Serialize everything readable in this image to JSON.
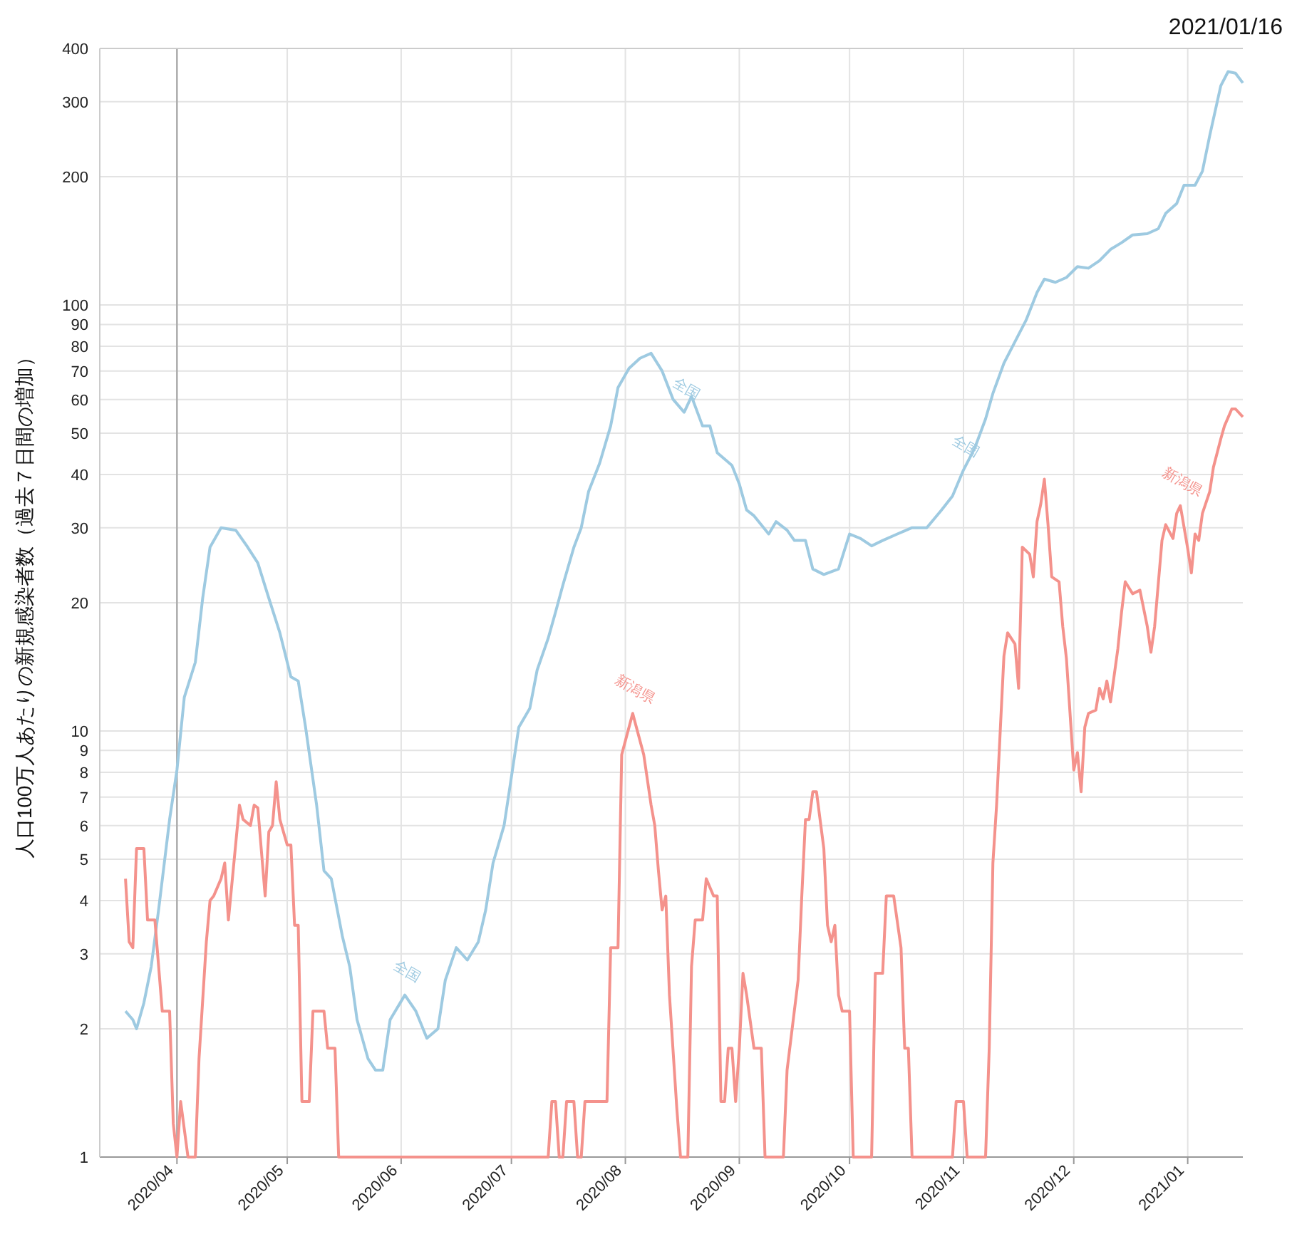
{
  "chart_data": {
    "type": "line",
    "ylabel": "人口100万人あたりの新規感染者数（過去７日間の増加）",
    "log": "y",
    "grid": true,
    "marker": "none",
    "line_style": "solid",
    "xlim": [
      "2020-03-11",
      "2021-01-16"
    ],
    "xticks": [
      {
        "value": "2020-04-01",
        "label": "2020/04"
      },
      {
        "value": "2020-05-01",
        "label": "2020/05"
      },
      {
        "value": "2020-06-01",
        "label": "2020/06"
      },
      {
        "value": "2020-07-01",
        "label": "2020/07"
      },
      {
        "value": "2020-08-01",
        "label": "2020/08"
      },
      {
        "value": "2020-09-01",
        "label": "2020/09"
      },
      {
        "value": "2020-10-01",
        "label": "2020/10"
      },
      {
        "value": "2020-11-01",
        "label": "2020/11"
      },
      {
        "value": "2020-12-01",
        "label": "2020/12"
      },
      {
        "value": "2021-01-01",
        "label": "2021/01"
      }
    ],
    "ylim": [
      1,
      400
    ],
    "yticks": [
      1,
      2,
      3,
      4,
      5,
      6,
      7,
      8,
      9,
      10,
      20,
      30,
      40,
      50,
      60,
      70,
      80,
      90,
      100,
      200,
      300,
      400
    ],
    "ref_lines": [
      {
        "axis": "x",
        "value": "2020-04-01",
        "color": "#aaaaaa"
      }
    ],
    "annotations": [
      "2021/01/16",
      {
        "text": "全国",
        "x": "2020-06-02",
        "y": 2.4
      },
      {
        "text": "全国",
        "x": "2020-08-17",
        "y": 56
      },
      {
        "text": "全国",
        "x": "2020-11-01",
        "y": 41
      },
      {
        "text": "新潟県",
        "x": "2020-08-03",
        "y": 11
      },
      {
        "text": "新潟県",
        "x": "2020-12-30",
        "y": 33.8
      }
    ],
    "series": [
      {
        "color": "#9ecae1",
        "x": [
          "2020-03-18",
          "2020-03-20",
          "2020-03-21",
          "2020-03-23",
          "2020-03-25",
          "2020-03-27",
          "2020-03-30",
          "2020-04-01",
          "2020-04-03",
          "2020-04-06",
          "2020-04-08",
          "2020-04-10",
          "2020-04-13",
          "2020-04-17",
          "2020-04-20",
          "2020-04-23",
          "2020-04-26",
          "2020-04-29",
          "2020-05-02",
          "2020-05-04",
          "2020-05-06",
          "2020-05-09",
          "2020-05-11",
          "2020-05-13",
          "2020-05-16",
          "2020-05-18",
          "2020-05-20",
          "2020-05-23",
          "2020-05-25",
          "2020-05-27",
          "2020-05-29",
          "2020-06-02",
          "2020-06-05",
          "2020-06-08",
          "2020-06-11",
          "2020-06-13",
          "2020-06-16",
          "2020-06-19",
          "2020-06-22",
          "2020-06-24",
          "2020-06-26",
          "2020-06-29",
          "2020-07-01",
          "2020-07-03",
          "2020-07-06",
          "2020-07-08",
          "2020-07-11",
          "2020-07-13",
          "2020-07-15",
          "2020-07-18",
          "2020-07-20",
          "2020-07-22",
          "2020-07-25",
          "2020-07-28",
          "2020-07-30",
          "2020-08-02",
          "2020-08-05",
          "2020-08-08",
          "2020-08-11",
          "2020-08-14",
          "2020-08-17",
          "2020-08-19",
          "2020-08-22",
          "2020-08-24",
          "2020-08-26",
          "2020-08-30",
          "2020-09-01",
          "2020-09-03",
          "2020-09-05",
          "2020-09-09",
          "2020-09-11",
          "2020-09-14",
          "2020-09-16",
          "2020-09-19",
          "2020-09-21",
          "2020-09-24",
          "2020-09-28",
          "2020-10-01",
          "2020-10-04",
          "2020-10-07",
          "2020-10-10",
          "2020-10-14",
          "2020-10-18",
          "2020-10-22",
          "2020-10-26",
          "2020-10-29",
          "2020-11-01",
          "2020-11-04",
          "2020-11-07",
          "2020-11-09",
          "2020-11-12",
          "2020-11-15",
          "2020-11-18",
          "2020-11-21",
          "2020-11-23",
          "2020-11-26",
          "2020-11-29",
          "2020-12-02",
          "2020-12-05",
          "2020-12-08",
          "2020-12-11",
          "2020-12-14",
          "2020-12-17",
          "2020-12-21",
          "2020-12-24",
          "2020-12-26",
          "2020-12-29",
          "2020-12-31",
          "2021-01-03",
          "2021-01-05",
          "2021-01-07",
          "2021-01-10",
          "2021-01-12",
          "2021-01-14",
          "2021-01-16"
        ],
        "values": [
          2.2,
          2.1,
          2.0,
          2.3,
          2.8,
          3.8,
          6.2,
          8.1,
          12,
          14.5,
          20.5,
          27,
          30,
          29.6,
          27.2,
          24.8,
          20.5,
          17,
          13.4,
          13.1,
          10.2,
          6.7,
          4.7,
          4.5,
          3.3,
          2.8,
          2.1,
          1.7,
          1.6,
          1.6,
          2.1,
          2.4,
          2.2,
          1.9,
          2.0,
          2.6,
          3.1,
          2.9,
          3.2,
          3.8,
          4.9,
          6.0,
          7.8,
          10.2,
          11.3,
          13.9,
          16.5,
          19,
          22,
          27,
          30,
          36.5,
          42.5,
          52,
          64,
          71,
          75,
          77,
          70,
          60,
          56,
          61,
          52,
          52,
          45,
          42,
          38,
          33,
          32,
          29,
          31,
          29.6,
          28,
          28,
          24,
          23.3,
          24,
          29,
          28.3,
          27.2,
          28,
          29,
          30,
          30,
          33,
          35.6,
          41,
          46,
          54,
          62,
          73,
          82,
          92,
          107,
          115,
          113,
          116,
          123,
          122,
          127,
          135,
          140,
          146,
          147,
          151,
          164,
          173,
          191,
          191,
          206,
          250,
          327,
          353,
          350,
          332
        ]
      },
      {
        "color": "#f4928c",
        "x": [
          "2020-03-18",
          "2020-03-19",
          "2020-03-20",
          "2020-03-21",
          "2020-03-23",
          "2020-03-24",
          "2020-03-26",
          "2020-03-28",
          "2020-03-30",
          "2020-03-31",
          "2020-04-01",
          "2020-04-02",
          "2020-04-04",
          "2020-04-06",
          "2020-04-07",
          "2020-04-09",
          "2020-04-10",
          "2020-04-11",
          "2020-04-13",
          "2020-04-14",
          "2020-04-15",
          "2020-04-18",
          "2020-04-19",
          "2020-04-21",
          "2020-04-22",
          "2020-04-23",
          "2020-04-25",
          "2020-04-26",
          "2020-04-27",
          "2020-04-28",
          "2020-04-29",
          "2020-05-01",
          "2020-05-02",
          "2020-05-03",
          "2020-05-04",
          "2020-05-05",
          "2020-05-07",
          "2020-05-08",
          "2020-05-11",
          "2020-05-12",
          "2020-05-14",
          "2020-05-15",
          "2020-07-11",
          "2020-07-12",
          "2020-07-13",
          "2020-07-14",
          "2020-07-15",
          "2020-07-16",
          "2020-07-18",
          "2020-07-19",
          "2020-07-20",
          "2020-07-21",
          "2020-07-27",
          "2020-07-28",
          "2020-07-30",
          "2020-07-31",
          "2020-08-03",
          "2020-08-04",
          "2020-08-06",
          "2020-08-08",
          "2020-08-09",
          "2020-08-10",
          "2020-08-11",
          "2020-08-12",
          "2020-08-13",
          "2020-08-15",
          "2020-08-16",
          "2020-08-18",
          "2020-08-19",
          "2020-08-20",
          "2020-08-22",
          "2020-08-23",
          "2020-08-25",
          "2020-08-26",
          "2020-08-27",
          "2020-08-28",
          "2020-08-29",
          "2020-08-30",
          "2020-08-31",
          "2020-09-01",
          "2020-09-02",
          "2020-09-03",
          "2020-09-05",
          "2020-09-07",
          "2020-09-08",
          "2020-09-13",
          "2020-09-14",
          "2020-09-17",
          "2020-09-18",
          "2020-09-19",
          "2020-09-20",
          "2020-09-21",
          "2020-09-22",
          "2020-09-24",
          "2020-09-25",
          "2020-09-26",
          "2020-09-27",
          "2020-09-28",
          "2020-09-29",
          "2020-10-01",
          "2020-10-02",
          "2020-10-07",
          "2020-10-08",
          "2020-10-10",
          "2020-10-11",
          "2020-10-13",
          "2020-10-15",
          "2020-10-16",
          "2020-10-17",
          "2020-10-18",
          "2020-10-29",
          "2020-10-30",
          "2020-11-01",
          "2020-11-02",
          "2020-11-07",
          "2020-11-08",
          "2020-11-09",
          "2020-11-10",
          "2020-11-12",
          "2020-11-13",
          "2020-11-15",
          "2020-11-16",
          "2020-11-17",
          "2020-11-19",
          "2020-11-20",
          "2020-11-21",
          "2020-11-22",
          "2020-11-23",
          "2020-11-24",
          "2020-11-25",
          "2020-11-27",
          "2020-11-28",
          "2020-11-29",
          "2020-12-01",
          "2020-12-02",
          "2020-12-03",
          "2020-12-04",
          "2020-12-05",
          "2020-12-07",
          "2020-12-08",
          "2020-12-09",
          "2020-12-10",
          "2020-12-11",
          "2020-12-13",
          "2020-12-14",
          "2020-12-15",
          "2020-12-17",
          "2020-12-19",
          "2020-12-21",
          "2020-12-22",
          "2020-12-23",
          "2020-12-25",
          "2020-12-26",
          "2020-12-28",
          "2020-12-29",
          "2020-12-30",
          "2021-01-01",
          "2021-01-02",
          "2021-01-03",
          "2021-01-04",
          "2021-01-05",
          "2021-01-07",
          "2021-01-08",
          "2021-01-10",
          "2021-01-11",
          "2021-01-13",
          "2021-01-14",
          "2021-01-16"
        ],
        "values": [
          4.5,
          3.2,
          3.1,
          5.3,
          5.3,
          3.6,
          3.6,
          2.2,
          2.2,
          1.2,
          1,
          1.35,
          1,
          1,
          1.7,
          3.2,
          4.0,
          4.1,
          4.5,
          4.9,
          3.6,
          6.7,
          6.2,
          6.0,
          6.7,
          6.6,
          4.1,
          5.8,
          6.0,
          7.6,
          6.2,
          5.4,
          5.4,
          3.5,
          3.5,
          1.35,
          1.35,
          2.2,
          2.2,
          1.8,
          1.8,
          1,
          1,
          1.35,
          1.35,
          1,
          1,
          1.35,
          1.35,
          1,
          1,
          1.35,
          1.35,
          3.1,
          3.1,
          8.8,
          11,
          10.2,
          8.8,
          6.7,
          6.0,
          4.7,
          3.8,
          4.1,
          2.4,
          1.3,
          1,
          1,
          2.8,
          3.6,
          3.6,
          4.5,
          4.1,
          4.1,
          1.35,
          1.35,
          1.8,
          1.8,
          1.35,
          1.8,
          2.7,
          2.4,
          1.8,
          1.8,
          1,
          1,
          1.6,
          2.6,
          4.1,
          6.2,
          6.2,
          7.2,
          7.2,
          5.3,
          3.5,
          3.2,
          3.5,
          2.4,
          2.2,
          2.2,
          1,
          1,
          2.7,
          2.7,
          4.1,
          4.1,
          3.1,
          1.8,
          1.8,
          1,
          1,
          1.35,
          1.35,
          1,
          1,
          1.8,
          4.9,
          6.7,
          15,
          17,
          16,
          12.6,
          27,
          26,
          23,
          31,
          34,
          39,
          30.5,
          23,
          22.4,
          17.6,
          14.8,
          8.1,
          8.9,
          7.2,
          10.2,
          11,
          11.2,
          12.6,
          11.9,
          13.1,
          11.7,
          15.6,
          19,
          22.4,
          21,
          21.4,
          17.6,
          15.3,
          17.6,
          28,
          30.5,
          28.3,
          32.4,
          33.8,
          26.8,
          23.5,
          29,
          28,
          32.4,
          36.5,
          41.6,
          48.5,
          52,
          57,
          57,
          54.6
        ]
      }
    ]
  }
}
